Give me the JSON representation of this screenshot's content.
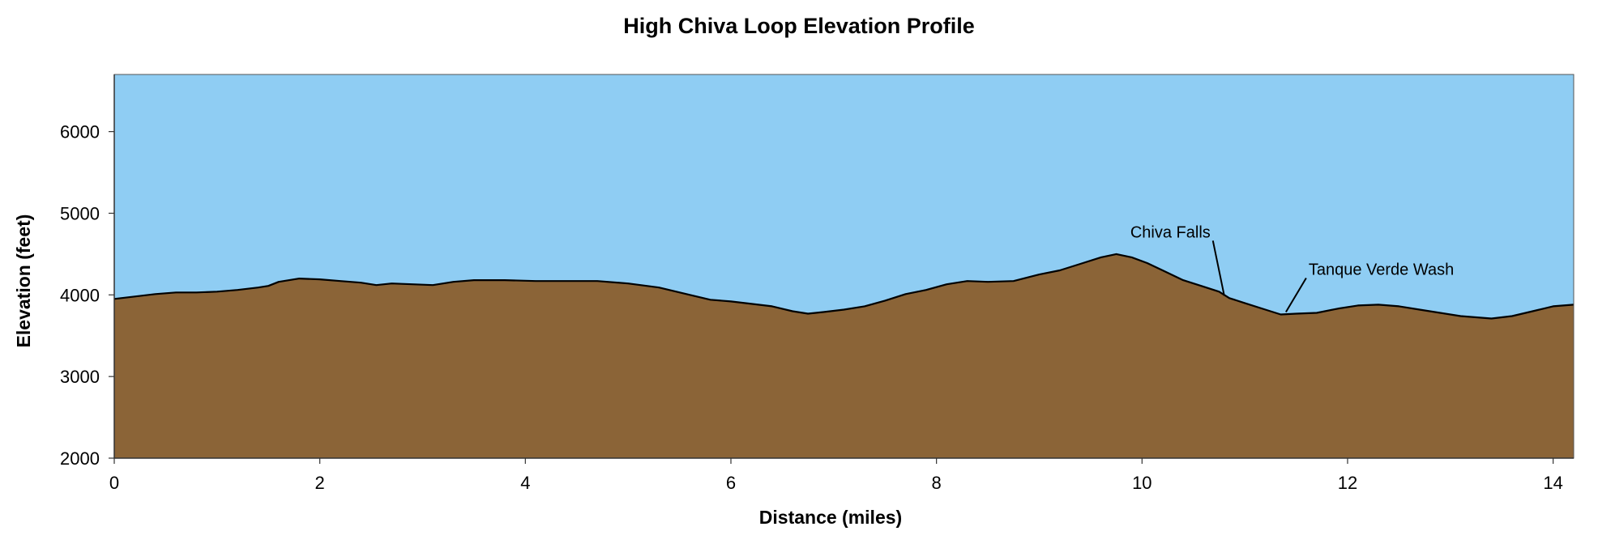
{
  "chart_data": {
    "type": "area",
    "title": "High Chiva Loop Elevation Profile",
    "xlabel": "Distance (miles)",
    "ylabel": "Elevation (feet)",
    "xlim": [
      0,
      14.2
    ],
    "ylim": [
      2000,
      6700
    ],
    "xticks": [
      0,
      2,
      4,
      6,
      8,
      10,
      12,
      14
    ],
    "yticks": [
      2000,
      3000,
      4000,
      5000,
      6000
    ],
    "xtick_labels": [
      "0",
      "2",
      "4",
      "6",
      "8",
      "10",
      "12",
      "14"
    ],
    "ytick_labels": [
      "2000",
      "3000",
      "4000",
      "5000",
      "6000"
    ],
    "grid": false,
    "legend": "none",
    "colors": {
      "sky": "#8fcdf3",
      "terrain": "#8b6437",
      "profile_line": "#000000",
      "plot_border": "#555555"
    },
    "series": [
      {
        "x": [
          0,
          0.2,
          0.4,
          0.6,
          0.8,
          1.0,
          1.2,
          1.4,
          1.5,
          1.6,
          1.8,
          2.0,
          2.2,
          2.4,
          2.55,
          2.7,
          2.9,
          3.1,
          3.3,
          3.5,
          3.8,
          4.1,
          4.4,
          4.7,
          5.0,
          5.3,
          5.6,
          5.8,
          6.0,
          6.2,
          6.4,
          6.6,
          6.75,
          6.9,
          7.1,
          7.3,
          7.5,
          7.7,
          7.9,
          8.1,
          8.3,
          8.5,
          8.75,
          9.0,
          9.2,
          9.4,
          9.6,
          9.75,
          9.9,
          10.05,
          10.2,
          10.4,
          10.6,
          10.75,
          10.85,
          11.0,
          11.2,
          11.35,
          11.5,
          11.7,
          11.9,
          12.1,
          12.3,
          12.5,
          12.7,
          12.9,
          13.1,
          13.4,
          13.6,
          13.8,
          14.0,
          14.2
        ],
        "values": [
          3950,
          3980,
          4010,
          4030,
          4030,
          4040,
          4060,
          4090,
          4110,
          4160,
          4200,
          4190,
          4170,
          4150,
          4120,
          4140,
          4130,
          4120,
          4160,
          4180,
          4180,
          4170,
          4170,
          4170,
          4140,
          4090,
          4000,
          3940,
          3920,
          3890,
          3860,
          3800,
          3770,
          3790,
          3820,
          3860,
          3930,
          4010,
          4060,
          4130,
          4170,
          4160,
          4170,
          4250,
          4300,
          4380,
          4460,
          4500,
          4460,
          4390,
          4300,
          4180,
          4100,
          4040,
          3960,
          3900,
          3820,
          3760,
          3770,
          3780,
          3830,
          3870,
          3880,
          3860,
          3820,
          3780,
          3740,
          3710,
          3740,
          3800,
          3860,
          3880
        ]
      }
    ],
    "annotations": [
      {
        "text": "Chiva Falls",
        "x": 10.8,
        "y": 3990
      },
      {
        "text": "Tanque Verde Wash",
        "x": 11.4,
        "y": 3790
      }
    ]
  }
}
